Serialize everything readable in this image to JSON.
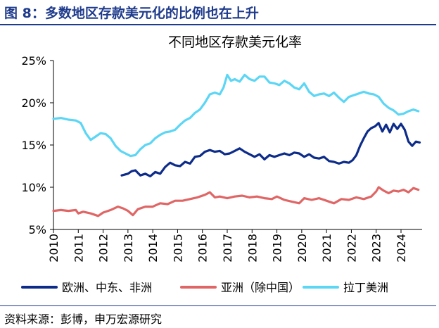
{
  "figure_title": "图 8：多数地区存款美元化的比例也在上升",
  "source_note": "资料来源：彭博，申万宏源研究",
  "colors": {
    "accent": "#1f3b8c"
  },
  "chart_data": {
    "type": "line",
    "title": "不同地区存款美元化率",
    "xlabel": "",
    "ylabel": "",
    "x_ticks": [
      "2010",
      "2011",
      "2012",
      "2013",
      "2014",
      "2015",
      "2016",
      "2017",
      "2018",
      "2019",
      "2020",
      "2021",
      "2022",
      "2023",
      "2024"
    ],
    "y_ticks": [
      "25%",
      "20%",
      "15%",
      "10%",
      "5%"
    ],
    "ylim": [
      5,
      25
    ],
    "xlim": [
      2010,
      2024.85
    ],
    "grid": false,
    "legend_position": "bottom",
    "series": [
      {
        "name": "欧洲、中东、非洲",
        "color": "#0d2c8a",
        "x": [
          2012.75,
          2013.0,
          2013.15,
          2013.3,
          2013.5,
          2013.7,
          2013.9,
          2014.1,
          2014.3,
          2014.5,
          2014.7,
          2014.9,
          2015.1,
          2015.3,
          2015.5,
          2015.7,
          2015.9,
          2016.1,
          2016.3,
          2016.5,
          2016.7,
          2016.9,
          2017.1,
          2017.3,
          2017.5,
          2017.7,
          2017.9,
          2018.1,
          2018.3,
          2018.5,
          2018.7,
          2018.9,
          2019.1,
          2019.3,
          2019.5,
          2019.7,
          2019.9,
          2020.1,
          2020.3,
          2020.5,
          2020.7,
          2020.9,
          2021.1,
          2021.3,
          2021.5,
          2021.7,
          2021.9,
          2022.05,
          2022.2,
          2022.35,
          2022.5,
          2022.65,
          2022.8,
          2022.95,
          2023.1,
          2023.25,
          2023.4,
          2023.55,
          2023.7,
          2023.85,
          2024.0,
          2024.15,
          2024.3,
          2024.45,
          2024.6,
          2024.75
        ],
        "values": [
          11.4,
          11.6,
          11.9,
          12.0,
          11.4,
          11.6,
          11.3,
          11.8,
          11.6,
          12.4,
          12.9,
          12.6,
          12.5,
          13.0,
          12.8,
          13.6,
          13.7,
          14.2,
          14.4,
          14.2,
          14.3,
          13.9,
          14.0,
          14.3,
          14.6,
          14.2,
          13.9,
          13.6,
          13.9,
          13.3,
          13.8,
          13.6,
          13.8,
          14.0,
          13.8,
          14.1,
          14.0,
          13.6,
          13.9,
          13.5,
          13.4,
          13.6,
          13.1,
          13.0,
          12.8,
          13.0,
          12.9,
          13.2,
          13.8,
          14.9,
          15.8,
          16.6,
          17.0,
          17.2,
          17.6,
          16.6,
          17.4,
          16.5,
          17.5,
          16.9,
          17.5,
          16.8,
          15.4,
          14.9,
          15.4,
          15.3
        ],
        "legend": "欧洲、中东、非洲"
      },
      {
        "name": "亚洲（除中国）",
        "color": "#e06666",
        "x": [
          2010.0,
          2010.3,
          2010.6,
          2010.9,
          2011.0,
          2011.2,
          2011.5,
          2011.8,
          2012.0,
          2012.3,
          2012.6,
          2012.8,
          2013.0,
          2013.2,
          2013.4,
          2013.7,
          2014.0,
          2014.3,
          2014.6,
          2014.9,
          2015.2,
          2015.5,
          2015.8,
          2016.1,
          2016.3,
          2016.5,
          2016.7,
          2017.0,
          2017.3,
          2017.6,
          2017.9,
          2018.2,
          2018.5,
          2018.8,
          2019.0,
          2019.3,
          2019.6,
          2019.9,
          2020.1,
          2020.4,
          2020.7,
          2021.0,
          2021.3,
          2021.6,
          2021.9,
          2022.2,
          2022.5,
          2022.8,
          2023.0,
          2023.1,
          2023.3,
          2023.5,
          2023.7,
          2023.9,
          2024.1,
          2024.3,
          2024.5,
          2024.7
        ],
        "values": [
          7.2,
          7.3,
          7.2,
          7.3,
          6.9,
          7.1,
          6.9,
          6.6,
          7.0,
          7.3,
          7.7,
          7.5,
          7.2,
          6.7,
          7.4,
          7.7,
          7.7,
          8.1,
          8.0,
          8.4,
          8.4,
          8.6,
          8.8,
          9.1,
          9.4,
          8.8,
          8.9,
          8.7,
          8.9,
          9.0,
          8.8,
          8.9,
          8.7,
          8.6,
          8.9,
          8.5,
          8.3,
          8.1,
          8.7,
          8.5,
          8.7,
          8.4,
          8.1,
          8.6,
          8.5,
          8.8,
          8.6,
          8.9,
          9.5,
          10.0,
          9.6,
          9.3,
          9.6,
          9.5,
          9.7,
          9.4,
          9.9,
          9.7
        ],
        "legend": "亚洲（除中国）"
      },
      {
        "name": "拉丁美洲",
        "color": "#5bd6f5",
        "x": [
          2010.0,
          2010.3,
          2010.6,
          2010.9,
          2011.1,
          2011.3,
          2011.5,
          2011.7,
          2011.9,
          2012.1,
          2012.3,
          2012.5,
          2012.7,
          2012.9,
          2013.1,
          2013.3,
          2013.5,
          2013.7,
          2013.9,
          2014.1,
          2014.3,
          2014.5,
          2014.7,
          2014.9,
          2015.1,
          2015.3,
          2015.5,
          2015.7,
          2015.9,
          2016.1,
          2016.3,
          2016.5,
          2016.7,
          2016.85,
          2017.0,
          2017.15,
          2017.3,
          2017.5,
          2017.7,
          2017.9,
          2018.1,
          2018.3,
          2018.5,
          2018.7,
          2018.9,
          2019.1,
          2019.3,
          2019.5,
          2019.7,
          2019.9,
          2020.1,
          2020.3,
          2020.5,
          2020.7,
          2020.9,
          2021.1,
          2021.3,
          2021.5,
          2021.7,
          2021.9,
          2022.1,
          2022.3,
          2022.5,
          2022.7,
          2022.9,
          2023.1,
          2023.3,
          2023.5,
          2023.7,
          2023.9,
          2024.1,
          2024.3,
          2024.5,
          2024.7
        ],
        "values": [
          18.1,
          18.2,
          18.0,
          17.9,
          17.6,
          16.4,
          15.6,
          16.0,
          16.4,
          16.3,
          15.8,
          14.9,
          14.3,
          14.0,
          13.7,
          13.8,
          14.5,
          15.0,
          15.2,
          15.8,
          16.2,
          16.5,
          16.6,
          16.8,
          17.4,
          17.9,
          18.2,
          18.8,
          19.2,
          20.0,
          21.0,
          21.2,
          21.0,
          21.8,
          23.3,
          22.6,
          22.8,
          22.5,
          23.3,
          22.8,
          22.6,
          23.1,
          23.1,
          22.4,
          22.3,
          22.1,
          22.6,
          22.3,
          21.8,
          21.6,
          22.3,
          21.3,
          20.8,
          21.0,
          21.1,
          20.8,
          21.2,
          20.6,
          20.1,
          20.7,
          20.9,
          21.1,
          21.3,
          21.1,
          21.0,
          20.7,
          19.9,
          19.4,
          19.1,
          18.6,
          18.7,
          19.0,
          19.2,
          19.0
        ],
        "legend": "拉丁美洲"
      }
    ]
  }
}
